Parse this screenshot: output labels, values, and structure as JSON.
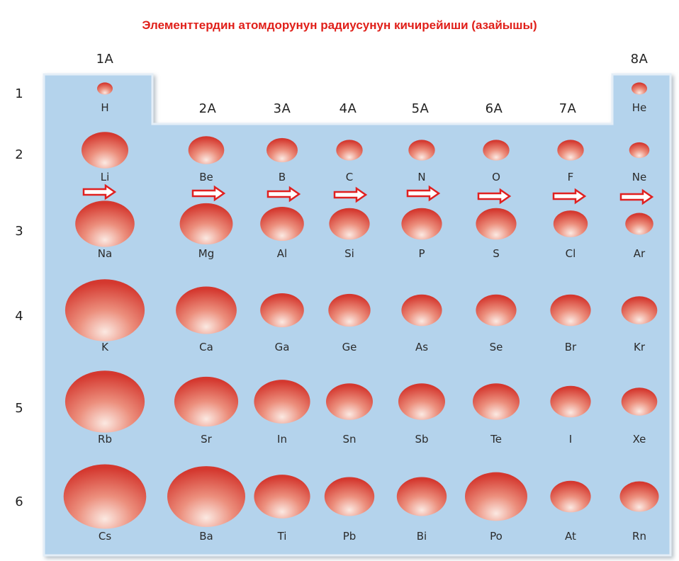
{
  "title": "Элементтердин атомдорунун радиусунун кичирейиши (азайышы)",
  "colors": {
    "title": "#e0201a",
    "table_fill": "#b4d3ec",
    "atom": "#d9433a",
    "arrow": "#e02020"
  },
  "groups": [
    "1A",
    "2A",
    "3A",
    "4A",
    "5A",
    "6A",
    "7A",
    "8A"
  ],
  "periods": [
    "1",
    "2",
    "3",
    "4",
    "5",
    "6"
  ],
  "elements": [
    {
      "symbol": "H",
      "period": 1,
      "group": 1,
      "size": 1
    },
    {
      "symbol": "He",
      "period": 1,
      "group": 8,
      "size": 1
    },
    {
      "symbol": "Li",
      "period": 2,
      "group": 1,
      "size": 3
    },
    {
      "symbol": "Be",
      "period": 2,
      "group": 2,
      "size": 2.3
    },
    {
      "symbol": "B",
      "period": 2,
      "group": 3,
      "size": 2
    },
    {
      "symbol": "C",
      "period": 2,
      "group": 4,
      "size": 1.7
    },
    {
      "symbol": "N",
      "period": 2,
      "group": 5,
      "size": 1.7
    },
    {
      "symbol": "O",
      "period": 2,
      "group": 6,
      "size": 1.7
    },
    {
      "symbol": "F",
      "period": 2,
      "group": 7,
      "size": 1.7
    },
    {
      "symbol": "Ne",
      "period": 2,
      "group": 8,
      "size": 1.3
    },
    {
      "symbol": "Na",
      "period": 3,
      "group": 1,
      "size": 3.8
    },
    {
      "symbol": "Mg",
      "period": 3,
      "group": 2,
      "size": 3.4
    },
    {
      "symbol": "Al",
      "period": 3,
      "group": 3,
      "size": 2.8
    },
    {
      "symbol": "Si",
      "period": 3,
      "group": 4,
      "size": 2.6
    },
    {
      "symbol": "P",
      "period": 3,
      "group": 5,
      "size": 2.6
    },
    {
      "symbol": "S",
      "period": 3,
      "group": 6,
      "size": 2.6
    },
    {
      "symbol": "Cl",
      "period": 3,
      "group": 7,
      "size": 2.2
    },
    {
      "symbol": "Ar",
      "period": 3,
      "group": 8,
      "size": 1.8
    },
    {
      "symbol": "K",
      "period": 4,
      "group": 1,
      "size": 5.1
    },
    {
      "symbol": "Ca",
      "period": 4,
      "group": 2,
      "size": 3.9
    },
    {
      "symbol": "Ga",
      "period": 4,
      "group": 3,
      "size": 2.8
    },
    {
      "symbol": "Ge",
      "period": 4,
      "group": 4,
      "size": 2.7
    },
    {
      "symbol": "As",
      "period": 4,
      "group": 5,
      "size": 2.6
    },
    {
      "symbol": "Se",
      "period": 4,
      "group": 6,
      "size": 2.6
    },
    {
      "symbol": "Br",
      "period": 4,
      "group": 7,
      "size": 2.6
    },
    {
      "symbol": "Kr",
      "period": 4,
      "group": 8,
      "size": 2.3
    },
    {
      "symbol": "Rb",
      "period": 5,
      "group": 1,
      "size": 5.1
    },
    {
      "symbol": "Sr",
      "period": 5,
      "group": 2,
      "size": 4.1
    },
    {
      "symbol": "In",
      "period": 5,
      "group": 3,
      "size": 3.6
    },
    {
      "symbol": "Sn",
      "period": 5,
      "group": 4,
      "size": 3
    },
    {
      "symbol": "Sb",
      "period": 5,
      "group": 5,
      "size": 3
    },
    {
      "symbol": "Te",
      "period": 5,
      "group": 6,
      "size": 3
    },
    {
      "symbol": "I",
      "period": 5,
      "group": 7,
      "size": 2.6
    },
    {
      "symbol": "Xe",
      "period": 5,
      "group": 8,
      "size": 2.3
    },
    {
      "symbol": "Cs",
      "period": 6,
      "group": 1,
      "size": 5.3
    },
    {
      "symbol": "Ba",
      "period": 6,
      "group": 2,
      "size": 5
    },
    {
      "symbol": "Ti",
      "period": 6,
      "group": 3,
      "size": 3.6
    },
    {
      "symbol": "Pb",
      "period": 6,
      "group": 4,
      "size": 3.2
    },
    {
      "symbol": "Bi",
      "period": 6,
      "group": 5,
      "size": 3.2
    },
    {
      "symbol": "Po",
      "period": 6,
      "group": 6,
      "size": 4
    },
    {
      "symbol": "At",
      "period": 6,
      "group": 7,
      "size": 2.6
    },
    {
      "symbol": "Rn",
      "period": 6,
      "group": 8,
      "size": 2.5
    }
  ],
  "arrows": [
    {
      "name": "arrow-group-1",
      "icon": "right-arrow-icon"
    },
    {
      "name": "arrow-group-2",
      "icon": "right-arrow-icon"
    },
    {
      "name": "arrow-group-3",
      "icon": "right-arrow-icon"
    },
    {
      "name": "arrow-group-4",
      "icon": "right-arrow-icon"
    },
    {
      "name": "arrow-group-5",
      "icon": "right-arrow-icon"
    },
    {
      "name": "arrow-group-6",
      "icon": "right-arrow-icon"
    },
    {
      "name": "arrow-group-7",
      "icon": "right-arrow-icon"
    },
    {
      "name": "arrow-group-8",
      "icon": "right-arrow-icon"
    }
  ]
}
